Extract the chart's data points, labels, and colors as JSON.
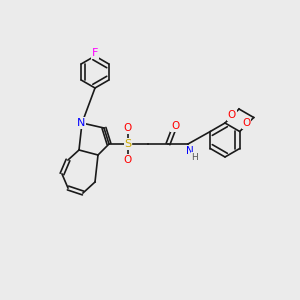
{
  "background_color": "#ebebeb",
  "bond_color": "#1a1a1a",
  "atom_colors": {
    "N": "#0000ff",
    "O": "#ff0000",
    "S": "#ccaa00",
    "F": "#ff00ff",
    "H": "#444444"
  },
  "font_size": 7,
  "line_width": 1.2
}
